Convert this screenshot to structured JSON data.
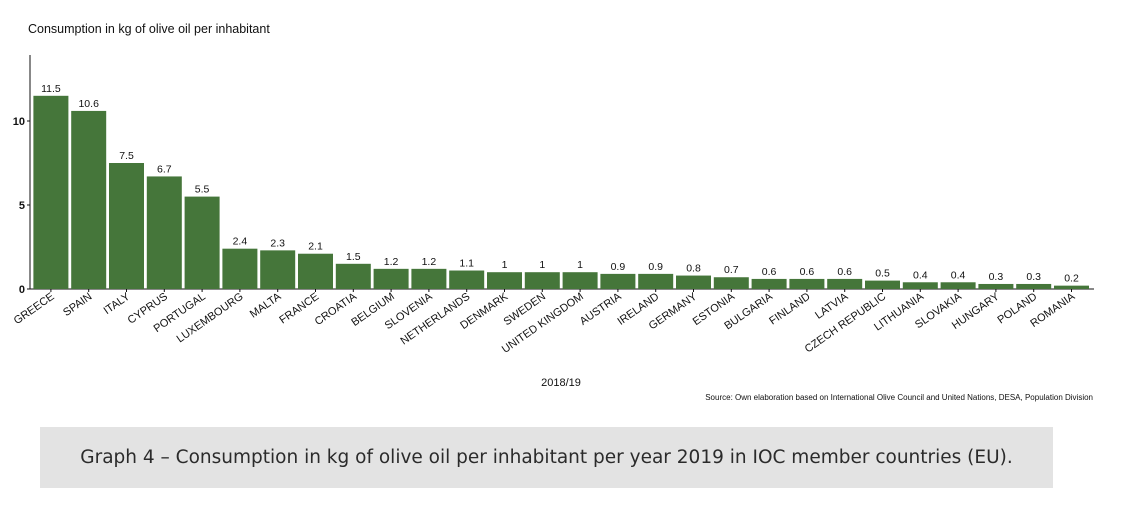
{
  "chart_data": {
    "type": "bar",
    "title": "Consumption in kg of olive oil per inhabitant",
    "xlabel": "2018/19",
    "ylabel": "",
    "ylim": [
      0,
      14
    ],
    "yticks": [
      "0",
      "5",
      "10"
    ],
    "grid": false,
    "categories": [
      "GREECE",
      "SPAIN",
      "ITALY",
      "CYPRUS",
      "PORTUGAL",
      "LUXEMBOURG",
      "MALTA",
      "FRANCE",
      "CROATIA",
      "BELGIUM",
      "SLOVENIA",
      "NETHERLANDS",
      "DENMARK",
      "SWEDEN",
      "UNITED KINGDOM",
      "AUSTRIA",
      "IRELAND",
      "GERMANY",
      "ESTONIA",
      "BULGARIA",
      "FINLAND",
      "LATVIA",
      "CZECH REPUBLIC",
      "LITHUANIA",
      "SLOVAKIA",
      "HUNGARY",
      "POLAND",
      "ROMANIA"
    ],
    "values": [
      11.5,
      10.6,
      7.5,
      6.7,
      5.5,
      2.4,
      2.3,
      2.1,
      1.5,
      1.2,
      1.2,
      1.1,
      1,
      1,
      1,
      0.9,
      0.9,
      0.8,
      0.7,
      0.6,
      0.6,
      0.6,
      0.5,
      0.4,
      0.4,
      0.3,
      0.3,
      0.2
    ],
    "value_labels": [
      "11.5",
      "10.6",
      "7.5",
      "6.7",
      "5.5",
      "2.4",
      "2.3",
      "2.1",
      "1.5",
      "1.2",
      "1.2",
      "1.1",
      "1",
      "1",
      "1",
      "0.9",
      "0.9",
      "0.8",
      "0.7",
      "0.6",
      "0.6",
      "0.6",
      "0.5",
      "0.4",
      "0.4",
      "0.3",
      "0.3",
      "0.2"
    ],
    "bar_color": "#45763a",
    "source": "Source: Own elaboration based on International Olive Council and United Nations, DESA, Population Division"
  },
  "caption": "Graph 4 – Consumption in kg of olive oil per inhabitant per year 2019 in IOC member countries (EU)."
}
